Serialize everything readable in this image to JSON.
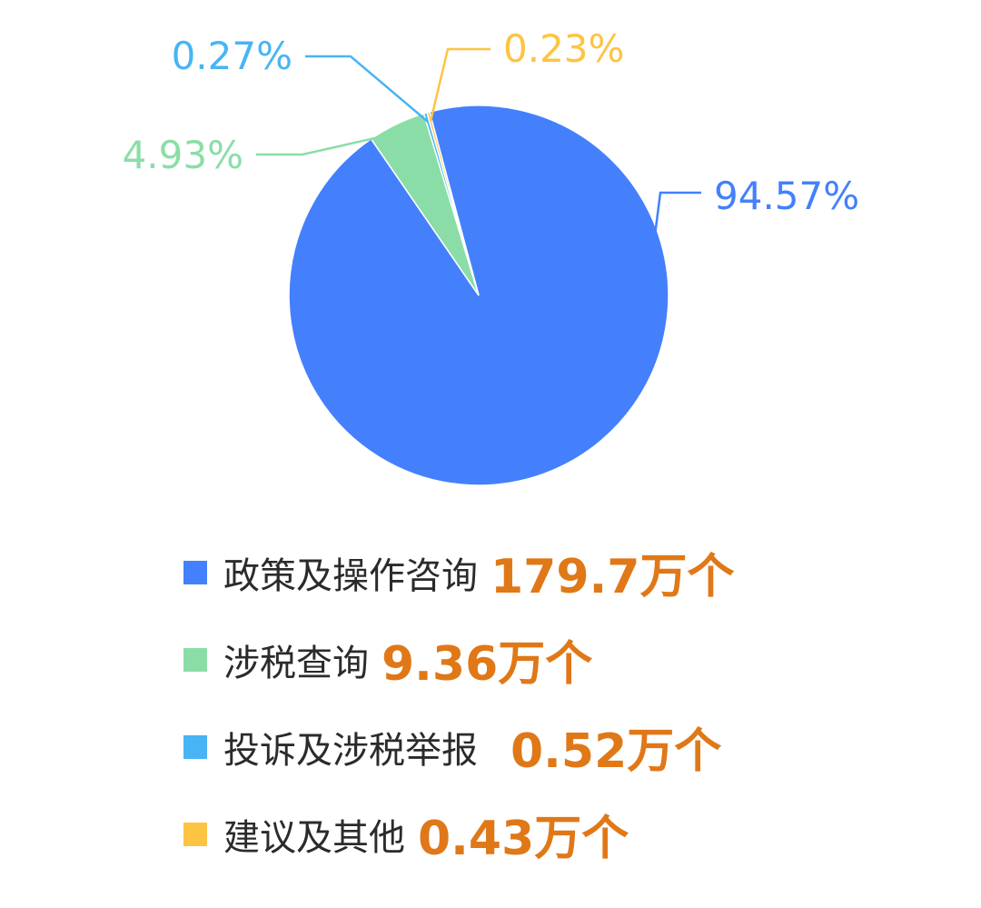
{
  "chart_data": {
    "type": "pie",
    "categories": [
      "政策及操作咨询",
      "涉税查询",
      "投诉及涉税举报",
      "建议及其他"
    ],
    "values": [
      179.7,
      9.36,
      0.52,
      0.43
    ],
    "value_labels": [
      "179.7万个",
      "9.36万个",
      "0.52万个",
      "0.43万个"
    ],
    "percent_labels": [
      "94.57%",
      "4.93%",
      "0.27%",
      "0.23%"
    ],
    "colors": [
      "#4480fc",
      "#8bdda7",
      "#48b4f5",
      "#fdc443"
    ],
    "value_label_color": "#e07818",
    "legend_position": "bottom",
    "title": ""
  }
}
